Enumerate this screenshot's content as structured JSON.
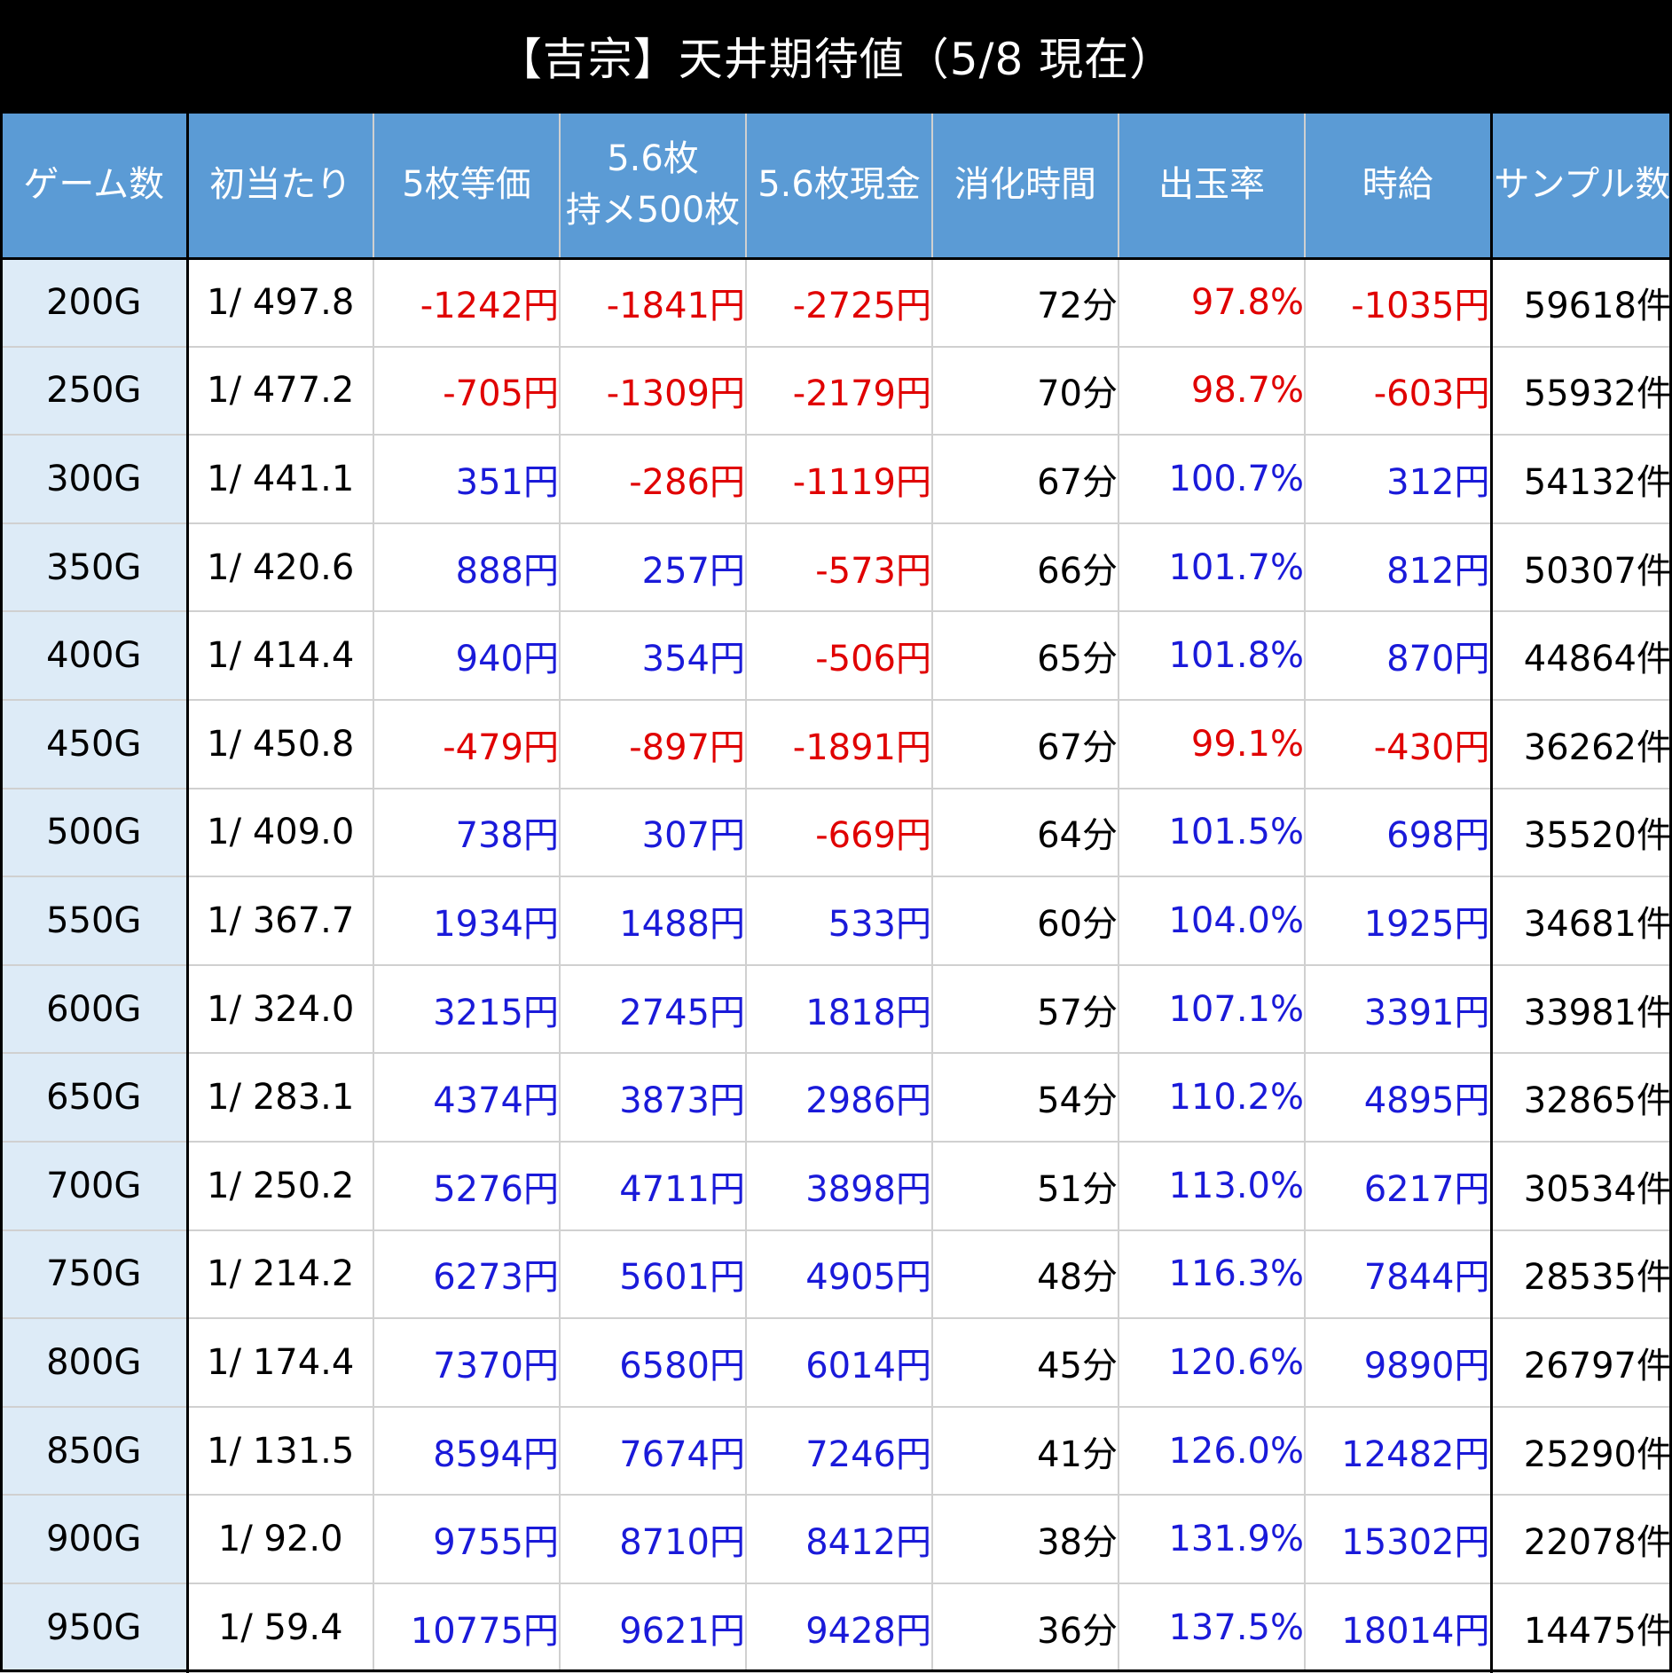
{
  "title": "【吉宗】天井期待値（5/8 現在）",
  "colors": {
    "title_bg": "#000000",
    "header_bg": "#5b9bd5",
    "first_col_bg": "#ddebf7",
    "positive": "#1a1ad9",
    "negative": "#e00000"
  },
  "columns": [
    {
      "label": "ゲーム数"
    },
    {
      "label": "初当たり"
    },
    {
      "label": "5枚等価"
    },
    {
      "label": "5.6枚\n持メ500枚"
    },
    {
      "label": "5.6枚現金"
    },
    {
      "label": "消化時間"
    },
    {
      "label": "出玉率"
    },
    {
      "label": "時給"
    },
    {
      "label": "サンプル数"
    }
  ],
  "rows": [
    {
      "game": "200G",
      "prob": "1/ 497.8",
      "eq5": "-1242円",
      "m56": "-1841円",
      "c56": "-2725円",
      "time": "72分",
      "rate": "97.8%",
      "wage": "-1035円",
      "samples": "59618件"
    },
    {
      "game": "250G",
      "prob": "1/ 477.2",
      "eq5": "-705円",
      "m56": "-1309円",
      "c56": "-2179円",
      "time": "70分",
      "rate": "98.7%",
      "wage": "-603円",
      "samples": "55932件"
    },
    {
      "game": "300G",
      "prob": "1/ 441.1",
      "eq5": "351円",
      "m56": "-286円",
      "c56": "-1119円",
      "time": "67分",
      "rate": "100.7%",
      "wage": "312円",
      "samples": "54132件"
    },
    {
      "game": "350G",
      "prob": "1/ 420.6",
      "eq5": "888円",
      "m56": "257円",
      "c56": "-573円",
      "time": "66分",
      "rate": "101.7%",
      "wage": "812円",
      "samples": "50307件"
    },
    {
      "game": "400G",
      "prob": "1/ 414.4",
      "eq5": "940円",
      "m56": "354円",
      "c56": "-506円",
      "time": "65分",
      "rate": "101.8%",
      "wage": "870円",
      "samples": "44864件"
    },
    {
      "game": "450G",
      "prob": "1/ 450.8",
      "eq5": "-479円",
      "m56": "-897円",
      "c56": "-1891円",
      "time": "67分",
      "rate": "99.1%",
      "wage": "-430円",
      "samples": "36262件"
    },
    {
      "game": "500G",
      "prob": "1/ 409.0",
      "eq5": "738円",
      "m56": "307円",
      "c56": "-669円",
      "time": "64分",
      "rate": "101.5%",
      "wage": "698円",
      "samples": "35520件"
    },
    {
      "game": "550G",
      "prob": "1/ 367.7",
      "eq5": "1934円",
      "m56": "1488円",
      "c56": "533円",
      "time": "60分",
      "rate": "104.0%",
      "wage": "1925円",
      "samples": "34681件"
    },
    {
      "game": "600G",
      "prob": "1/ 324.0",
      "eq5": "3215円",
      "m56": "2745円",
      "c56": "1818円",
      "time": "57分",
      "rate": "107.1%",
      "wage": "3391円",
      "samples": "33981件"
    },
    {
      "game": "650G",
      "prob": "1/ 283.1",
      "eq5": "4374円",
      "m56": "3873円",
      "c56": "2986円",
      "time": "54分",
      "rate": "110.2%",
      "wage": "4895円",
      "samples": "32865件"
    },
    {
      "game": "700G",
      "prob": "1/ 250.2",
      "eq5": "5276円",
      "m56": "4711円",
      "c56": "3898円",
      "time": "51分",
      "rate": "113.0%",
      "wage": "6217円",
      "samples": "30534件"
    },
    {
      "game": "750G",
      "prob": "1/ 214.2",
      "eq5": "6273円",
      "m56": "5601円",
      "c56": "4905円",
      "time": "48分",
      "rate": "116.3%",
      "wage": "7844円",
      "samples": "28535件"
    },
    {
      "game": "800G",
      "prob": "1/ 174.4",
      "eq5": "7370円",
      "m56": "6580円",
      "c56": "6014円",
      "time": "45分",
      "rate": "120.6%",
      "wage": "9890円",
      "samples": "26797件"
    },
    {
      "game": "850G",
      "prob": "1/ 131.5",
      "eq5": "8594円",
      "m56": "7674円",
      "c56": "7246円",
      "time": "41分",
      "rate": "126.0%",
      "wage": "12482円",
      "samples": "25290件"
    },
    {
      "game": "900G",
      "prob": "1/ 92.0",
      "eq5": "9755円",
      "m56": "8710円",
      "c56": "8412円",
      "time": "38分",
      "rate": "131.9%",
      "wage": "15302円",
      "samples": "22078件"
    },
    {
      "game": "950G",
      "prob": "1/ 59.4",
      "eq5": "10775円",
      "m56": "9621円",
      "c56": "9428円",
      "time": "36分",
      "rate": "137.5%",
      "wage": "18014円",
      "samples": "14475件"
    }
  ]
}
